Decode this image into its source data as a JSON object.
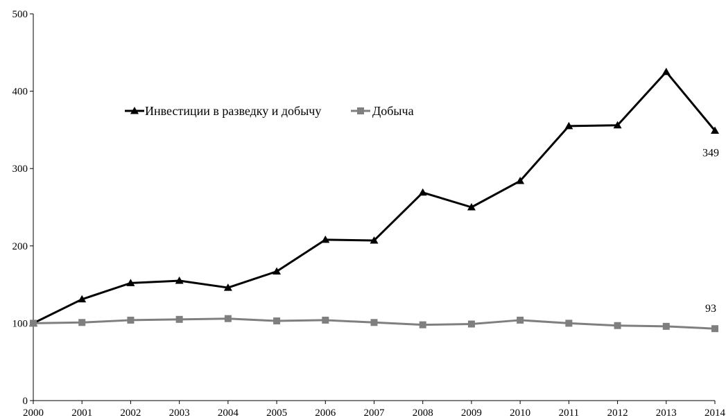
{
  "chart_data": {
    "type": "line",
    "title": "",
    "xlabel": "",
    "ylabel": "",
    "x": [
      "2000",
      "2001",
      "2002",
      "2003",
      "2004",
      "2005",
      "2006",
      "2007",
      "2008",
      "2009",
      "2010",
      "2011",
      "2012",
      "2013",
      "2014"
    ],
    "ylim": [
      0,
      500
    ],
    "yticks": [
      "0",
      "100",
      "200",
      "300",
      "400",
      "500"
    ],
    "grid": false,
    "legend_position": "top-left",
    "series": [
      {
        "name": "Инвестиции в разведку и добычу",
        "marker": "triangle",
        "color": "#000000",
        "values": [
          100,
          131,
          152,
          155,
          146,
          167,
          208,
          207,
          269,
          250,
          284,
          355,
          356,
          425,
          349
        ]
      },
      {
        "name": "Добыча",
        "marker": "square",
        "color": "#7f7f7f",
        "values": [
          100,
          101,
          104,
          105,
          106,
          103,
          104,
          101,
          98,
          99,
          104,
          100,
          97,
          96,
          93
        ]
      }
    ],
    "annotations": [
      {
        "series": 0,
        "index": 14,
        "text": "349"
      },
      {
        "series": 1,
        "index": 14,
        "text": "93"
      }
    ]
  }
}
